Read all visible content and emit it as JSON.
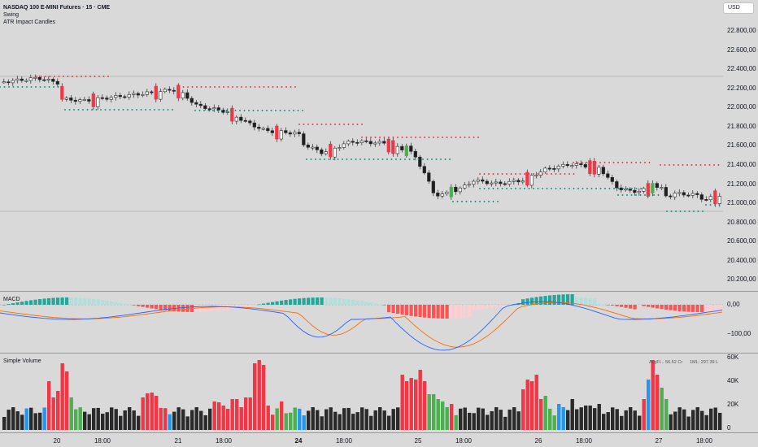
{
  "symbol_title": "NASDAQ 100 E-MINI Futures · 15 · CME",
  "indicators": [
    "Swing",
    "ATR Impact Candles"
  ],
  "currency_button": "USD",
  "price_axis": [
    "22.800,00",
    "22.600,00",
    "22.400,00",
    "22.200,00",
    "22.000,00",
    "21.800,00",
    "21.600,00",
    "21.400,00",
    "21.200,00",
    "21.000,00",
    "20.800,00",
    "20.600,00",
    "20.400,00",
    "20.200,00"
  ],
  "macd": {
    "label": "MACD",
    "axis": [
      "0,00",
      "−100,00"
    ]
  },
  "volume": {
    "label": "Simple Volume",
    "axis": [
      "60K",
      "40K",
      "20K",
      "0"
    ],
    "avg_label": "AvgFl... 56.52 Cr",
    "vol_label": "1ML: 297.39 L"
  },
  "time_axis": [
    {
      "label": "20",
      "bold": false
    },
    {
      "label": "18:00",
      "bold": false
    },
    {
      "label": "21",
      "bold": false
    },
    {
      "label": "18:00",
      "bold": false
    },
    {
      "label": "24",
      "bold": true
    },
    {
      "label": "18:00",
      "bold": false
    },
    {
      "label": "25",
      "bold": false
    },
    {
      "label": "18:00",
      "bold": false
    },
    {
      "label": "26",
      "bold": false
    },
    {
      "label": "18:00",
      "bold": false
    },
    {
      "label": "27",
      "bold": false
    },
    {
      "label": "18:00",
      "bold": false
    }
  ],
  "colors": {
    "bull": "#ffffff",
    "bear": "#1f1f1f",
    "impact_up": "#4caf50",
    "impact_down": "#f23645",
    "swing_high": "#f23645",
    "swing_low": "#089981",
    "volume_neutral": "#2a2a2a",
    "volume_blue": "#2196f3",
    "macd_line": "#2962ff",
    "signal_line": "#ff6d00",
    "hist_up": "#26a69a",
    "hist_up_light": "#b2dfdb",
    "hist_down": "#ff5252",
    "hist_down_light": "#ffcdd2"
  }
}
